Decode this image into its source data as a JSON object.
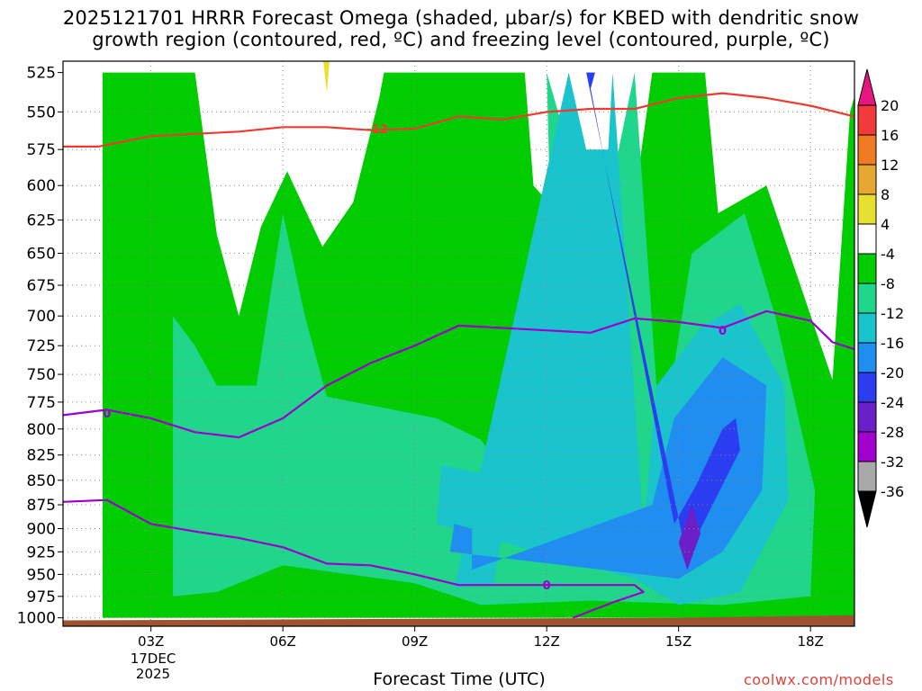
{
  "title_line1": "2025121701 HRRR Forecast Omega (shaded, µbar/s) for KBED with dendritic snow",
  "title_line2": "growth region (contoured, red, ºC) and freezing level (contoured, purple, ºC)",
  "credit": "coolwx.com/models",
  "colors": {
    "dendritic_contour": "#ee3b30",
    "freezing_contour": "#9a00d0",
    "ground": "#9e5230",
    "grid": "#888888"
  },
  "chart_data": {
    "type": "heatmap",
    "title": "2025121701 HRRR Forecast Omega (shaded, µbar/s) for KBED with dendritic snow growth region (contoured, red, ºC) and freezing level (contoured, purple, ºC)",
    "xlabel": "Forecast Time (UTC)",
    "ylabel": "",
    "x_unit": "hours UTC, 17 DEC 2025",
    "xlim": [
      1,
      19
    ],
    "ylim": [
      1000,
      525
    ],
    "y_scale": "log (pressure, mb)",
    "x_ticks": [
      {
        "value": 3,
        "label": "03Z"
      },
      {
        "value": 6,
        "label": "06Z"
      },
      {
        "value": 9,
        "label": "09Z"
      },
      {
        "value": 12,
        "label": "12Z"
      },
      {
        "value": 15,
        "label": "15Z"
      },
      {
        "value": 18,
        "label": "18Z"
      }
    ],
    "date_label": {
      "day": "17DEC",
      "year": "2025"
    },
    "y_ticks": [
      525,
      550,
      575,
      600,
      625,
      650,
      675,
      700,
      725,
      750,
      775,
      800,
      825,
      850,
      875,
      900,
      925,
      950,
      975,
      1000
    ],
    "grid": true,
    "colorbar": {
      "labels": [
        20,
        16,
        12,
        8,
        4,
        -4,
        -8,
        -12,
        -16,
        -20,
        -24,
        -28,
        -32,
        -36
      ],
      "colors": [
        "#e5177e",
        "#f23a3a",
        "#f07a22",
        "#e6a832",
        "#e8e030",
        "#ffffff",
        "#00cc00",
        "#1fd68a",
        "#19c4cc",
        "#1f8ef0",
        "#2a3df0",
        "#6a1fc8",
        "#a200cc",
        "#a8a8a8",
        "#000000"
      ]
    },
    "shaded_regions": [
      {
        "level": "-4 to -8",
        "color": "#00cc00",
        "pts": [
          [
            1.9,
            1000
          ],
          [
            1.9,
            525
          ],
          [
            4.0,
            525
          ],
          [
            4.5,
            636
          ],
          [
            5.0,
            700
          ],
          [
            5.5,
            630
          ],
          [
            6.1,
            590
          ],
          [
            6.9,
            645
          ],
          [
            7.6,
            612
          ],
          [
            8.2,
            540
          ],
          [
            8.3,
            525
          ],
          [
            11.5,
            525
          ],
          [
            11.7,
            600
          ],
          [
            12.8,
            640
          ],
          [
            14.0,
            610
          ],
          [
            14.4,
            525
          ],
          [
            15.6,
            525
          ],
          [
            15.9,
            620
          ],
          [
            17.0,
            600
          ],
          [
            18.5,
            755
          ],
          [
            18.9,
            550
          ],
          [
            19,
            540
          ],
          [
            19,
            1000
          ]
        ]
      },
      {
        "level": "-8 to -12",
        "color": "#1fd68a",
        "pts": [
          [
            3.5,
            975
          ],
          [
            3.5,
            700
          ],
          [
            4.0,
            725
          ],
          [
            4.5,
            760
          ],
          [
            5.4,
            760
          ],
          [
            6.0,
            620
          ],
          [
            6.5,
            700
          ],
          [
            7.0,
            770
          ],
          [
            9.5,
            790
          ],
          [
            10.5,
            810
          ],
          [
            11.5,
            870
          ],
          [
            12.2,
            790
          ],
          [
            12.0,
            525
          ],
          [
            12.7,
            595
          ],
          [
            13.5,
            595
          ],
          [
            14.0,
            525
          ],
          [
            14.6,
            820
          ],
          [
            15.3,
            650
          ],
          [
            16.5,
            620
          ],
          [
            17.2,
            700
          ],
          [
            18.1,
            860
          ],
          [
            18.0,
            975
          ],
          [
            16.0,
            985
          ],
          [
            13.0,
            980
          ],
          [
            10.5,
            985
          ],
          [
            9.0,
            960
          ],
          [
            6.0,
            940
          ],
          [
            4.5,
            970
          ]
        ]
      },
      {
        "level": "-12 to -16",
        "color": "#19c4cc",
        "pts": [
          [
            9.5,
            895
          ],
          [
            9.6,
            835
          ],
          [
            10.7,
            845
          ],
          [
            11.0,
            900
          ],
          [
            10.8,
            960
          ],
          [
            9.9,
            965
          ],
          [
            12.5,
            525
          ],
          [
            12.9,
            575
          ],
          [
            13.4,
            575
          ],
          [
            13.5,
            525
          ],
          [
            14.2,
            900
          ],
          [
            14.5,
            760
          ],
          [
            15.5,
            710
          ],
          [
            16.4,
            690
          ],
          [
            17.4,
            760
          ],
          [
            17.5,
            870
          ],
          [
            16.4,
            970
          ],
          [
            15.0,
            985
          ],
          [
            14.0,
            955
          ]
        ]
      },
      {
        "level": "-16 to -20",
        "color": "#1f8ef0",
        "pts": [
          [
            9.8,
            925
          ],
          [
            9.9,
            895
          ],
          [
            10.3,
            900
          ],
          [
            10.3,
            945
          ],
          [
            10.0,
            950
          ],
          [
            14.4,
            875
          ],
          [
            14.9,
            790
          ],
          [
            16.0,
            735
          ],
          [
            17.0,
            760
          ],
          [
            16.9,
            860
          ],
          [
            16.0,
            925
          ],
          [
            15.0,
            955
          ]
        ]
      },
      {
        "level": "-20 to -24",
        "color": "#2a3df0",
        "pts": [
          [
            14.9,
            895
          ],
          [
            15.4,
            855
          ],
          [
            16.0,
            800
          ],
          [
            16.3,
            790
          ],
          [
            16.4,
            820
          ],
          [
            15.5,
            900
          ],
          [
            15.2,
            935
          ],
          [
            12.9,
            525
          ],
          [
            13.1,
            525
          ],
          [
            13.0,
            535
          ]
        ]
      },
      {
        "level": "-24 to -28",
        "color": "#6a1fc8",
        "pts": [
          [
            15.0,
            915
          ],
          [
            15.3,
            875
          ],
          [
            15.5,
            905
          ],
          [
            15.2,
            945
          ]
        ]
      }
    ],
    "contours": [
      {
        "name": "dendritic -12 ºC",
        "color": "#ee3b30",
        "label": "-12",
        "pts": [
          [
            1,
            573
          ],
          [
            1.8,
            573
          ],
          [
            3,
            566
          ],
          [
            5,
            563
          ],
          [
            6,
            560
          ],
          [
            7,
            560
          ],
          [
            8,
            562
          ],
          [
            9,
            561
          ],
          [
            10,
            553
          ],
          [
            11,
            555
          ],
          [
            12,
            550
          ],
          [
            13,
            548
          ],
          [
            14,
            548
          ],
          [
            15,
            541
          ],
          [
            16,
            538
          ],
          [
            17,
            541
          ],
          [
            18,
            546
          ],
          [
            19,
            553
          ]
        ]
      },
      {
        "name": "freezing level 0 ºC (upper)",
        "color": "#9a00d0",
        "label": "0",
        "pts": [
          [
            1,
            787
          ],
          [
            2,
            782
          ],
          [
            3,
            790
          ],
          [
            4,
            803
          ],
          [
            5,
            808
          ],
          [
            6,
            790
          ],
          [
            7,
            760
          ],
          [
            8,
            740
          ],
          [
            9,
            725
          ],
          [
            10,
            708
          ],
          [
            11,
            710
          ],
          [
            12,
            712
          ],
          [
            13,
            714
          ],
          [
            14,
            702
          ],
          [
            15,
            705
          ],
          [
            16,
            710
          ],
          [
            17,
            696
          ],
          [
            18,
            704
          ],
          [
            18.5,
            722
          ],
          [
            19,
            728
          ]
        ]
      },
      {
        "name": "freezing level 0 ºC (lower)",
        "color": "#9a00d0",
        "label": "0",
        "pts": [
          [
            1,
            872
          ],
          [
            2,
            870
          ],
          [
            3,
            895
          ],
          [
            4,
            903
          ],
          [
            5,
            910
          ],
          [
            6,
            920
          ],
          [
            7,
            938
          ],
          [
            8,
            940
          ],
          [
            9,
            950
          ],
          [
            10,
            962
          ],
          [
            11,
            962
          ],
          [
            12,
            962
          ],
          [
            13,
            962
          ],
          [
            14,
            962
          ],
          [
            14.2,
            970
          ],
          [
            13.5,
            982
          ],
          [
            12.6,
            1000
          ]
        ]
      }
    ],
    "ground": {
      "color": "#9e5230",
      "pts": [
        [
          1,
          1003
        ],
        [
          15,
          1000
        ],
        [
          19,
          997
        ]
      ]
    }
  }
}
